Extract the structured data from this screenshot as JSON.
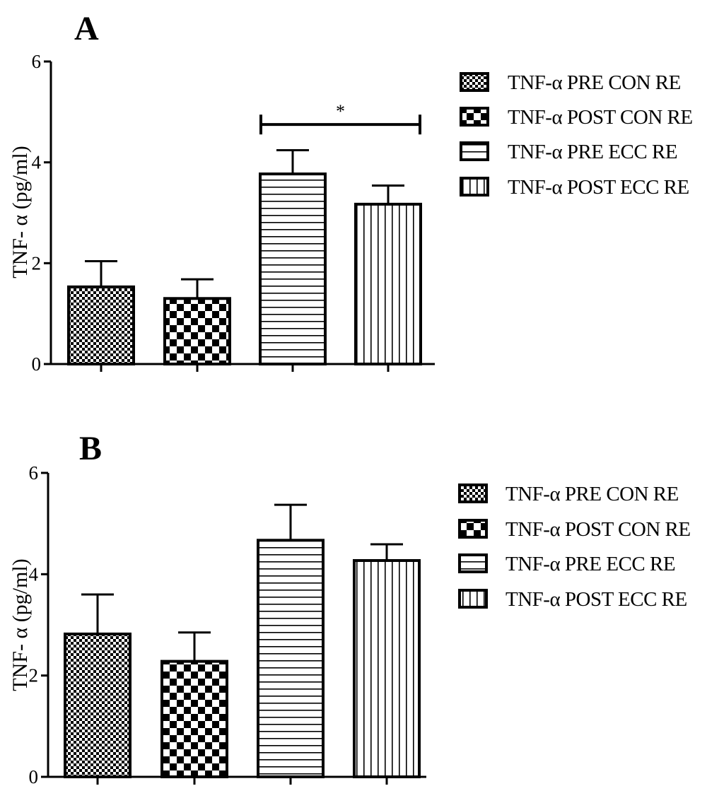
{
  "chart_data": [
    {
      "type": "bar",
      "panel_label": "A",
      "title": "",
      "xlabel": "",
      "ylabel": "TNF- α (pg/ml)",
      "ylim": [
        0,
        6
      ],
      "yticks": [
        "0",
        "2",
        "4",
        "6"
      ],
      "grid": false,
      "legend_position": "right",
      "bars": [
        {
          "name": "TNF-α PRE CON RE",
          "value": 1.53,
          "error": 0.51,
          "pattern": "fine-checker"
        },
        {
          "name": "TNF-α POST CON RE",
          "value": 1.3,
          "error": 0.38,
          "pattern": "coarse-checker"
        },
        {
          "name": "TNF-α PRE ECC RE",
          "value": 3.77,
          "error": 0.47,
          "pattern": "horizontal-lines"
        },
        {
          "name": "TNF-α POST ECC RE",
          "value": 3.17,
          "error": 0.37,
          "pattern": "vertical-lines"
        }
      ],
      "significance": {
        "from_bar": 3,
        "to_bar": 4,
        "y": 4.75,
        "label": "*"
      }
    },
    {
      "type": "bar",
      "panel_label": "B",
      "title": "",
      "xlabel": "",
      "ylabel": "TNF- α (pg/ml)",
      "ylim": [
        0,
        6
      ],
      "yticks": [
        "0",
        "2",
        "4",
        "6"
      ],
      "grid": false,
      "legend_position": "right",
      "bars": [
        {
          "name": "TNF-α PRE CON RE",
          "value": 2.82,
          "error": 0.78,
          "pattern": "fine-checker"
        },
        {
          "name": "TNF-α POST CON RE",
          "value": 2.28,
          "error": 0.57,
          "pattern": "coarse-checker"
        },
        {
          "name": "TNF-α PRE ECC RE",
          "value": 4.67,
          "error": 0.7,
          "pattern": "horizontal-lines"
        },
        {
          "name": "TNF-α POST ECC RE",
          "value": 4.27,
          "error": 0.32,
          "pattern": "vertical-lines"
        }
      ]
    }
  ]
}
